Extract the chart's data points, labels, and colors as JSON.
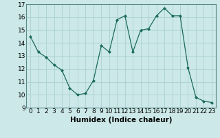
{
  "x": [
    0,
    1,
    2,
    3,
    4,
    5,
    6,
    7,
    8,
    9,
    10,
    11,
    12,
    13,
    14,
    15,
    16,
    17,
    18,
    19,
    20,
    21,
    22,
    23
  ],
  "y": [
    14.5,
    13.3,
    12.9,
    12.3,
    11.9,
    10.5,
    10.0,
    10.1,
    11.1,
    13.8,
    13.3,
    15.8,
    16.1,
    13.3,
    15.0,
    15.1,
    16.1,
    16.7,
    16.1,
    16.1,
    12.1,
    9.8,
    9.5,
    9.4
  ],
  "line_color": "#1a6b5a",
  "marker": "D",
  "marker_size": 2.0,
  "bg_color": "#cce8e8",
  "grid_color": "#b0d4d4",
  "xlabel": "Humidex (Indice chaleur)",
  "xlim": [
    -0.5,
    23.5
  ],
  "ylim": [
    9,
    17
  ],
  "yticks": [
    9,
    10,
    11,
    12,
    13,
    14,
    15,
    16,
    17
  ],
  "xticks": [
    0,
    1,
    2,
    3,
    4,
    5,
    6,
    7,
    8,
    9,
    10,
    11,
    12,
    13,
    14,
    15,
    16,
    17,
    18,
    19,
    20,
    21,
    22,
    23
  ],
  "xlabel_fontsize": 7.5,
  "tick_fontsize": 6.5,
  "spine_color": "#5a8a8a"
}
